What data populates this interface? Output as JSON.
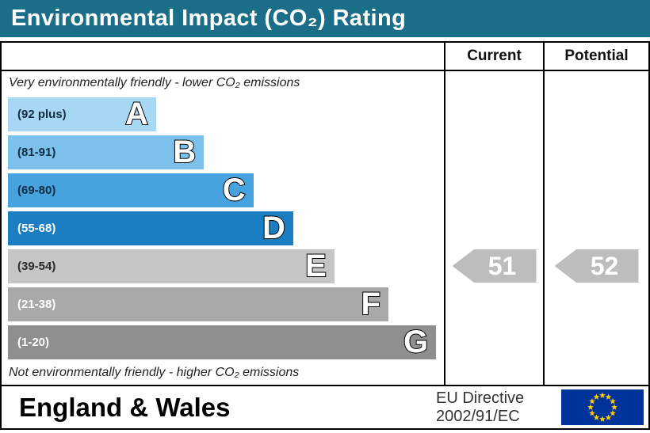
{
  "title": "Environmental Impact (CO₂) Rating",
  "colors": {
    "title_bar": "#1b6e88",
    "pointer": "#bdbdbd"
  },
  "table": {
    "current_header": "Current",
    "potential_header": "Potential",
    "top_note": "Very environmentally friendly - lower CO₂ emissions",
    "bottom_note": "Not environmentally friendly - higher CO₂ emissions"
  },
  "bands": [
    {
      "letter": "A",
      "range": "(92 plus)",
      "color": "#a8d7f3",
      "text_color": "#112e44",
      "width_pct": 33.5
    },
    {
      "letter": "B",
      "range": "(81-91)",
      "color": "#7cc1ec",
      "text_color": "#112e44",
      "width_pct": 44.3
    },
    {
      "letter": "C",
      "range": "(69-80)",
      "color": "#47a3dd",
      "text_color": "#112e44",
      "width_pct": 55.5
    },
    {
      "letter": "D",
      "range": "(55-68)",
      "color": "#1b7ec2",
      "text_color": "#ffffff",
      "width_pct": 64.5
    },
    {
      "letter": "E",
      "range": "(39-54)",
      "color": "#c5c5c5",
      "text_color": "#2b2b2b",
      "width_pct": 73.8
    },
    {
      "letter": "F",
      "range": "(21-38)",
      "color": "#a9a9a9",
      "text_color": "#ffffff",
      "width_pct": 86
    },
    {
      "letter": "G",
      "range": "(1-20)",
      "color": "#8f8f8f",
      "text_color": "#ffffff",
      "width_pct": 96.8
    }
  ],
  "pointers": {
    "current": {
      "value": "51",
      "band": "E"
    },
    "potential": {
      "value": "52",
      "band": "E"
    }
  },
  "footer": {
    "region": "England & Wales",
    "directive_line1": "EU Directive",
    "directive_line2": "2002/91/EC",
    "flag": {
      "background": "#003399",
      "star_color": "#ffcc00"
    }
  },
  "chart_data": {
    "type": "bar",
    "title": "Environmental Impact (CO₂) Rating",
    "categories": [
      "A",
      "B",
      "C",
      "D",
      "E",
      "F",
      "G"
    ],
    "band_ranges": [
      "92 plus",
      "81-91",
      "69-80",
      "55-68",
      "39-54",
      "21-38",
      "1-20"
    ],
    "values": [
      33.5,
      44.3,
      55.5,
      64.5,
      73.8,
      86,
      96.8
    ],
    "values_note": "relative band bar widths (% of rating column width)",
    "series": [
      {
        "name": "Current",
        "value": 51,
        "band": "E"
      },
      {
        "name": "Potential",
        "value": 52,
        "band": "E"
      }
    ],
    "top_label": "Very environmentally friendly - lower CO₂ emissions",
    "bottom_label": "Not environmentally friendly - higher CO₂ emissions",
    "grid": false,
    "legend_position": "none"
  }
}
